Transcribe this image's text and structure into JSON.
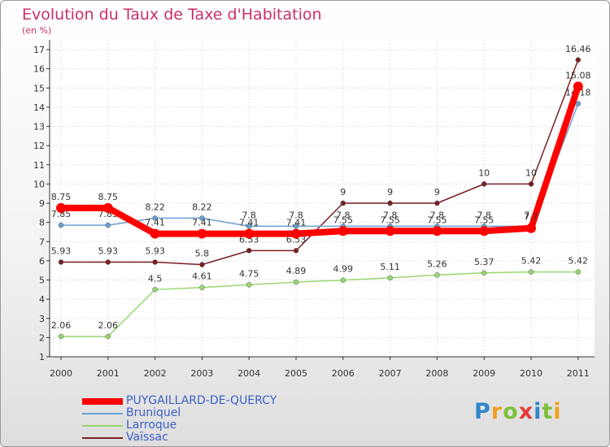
{
  "chart_data": {
    "type": "line",
    "title": "Evolution du Taux de Taxe d'Habitation",
    "subtitle": "(en %)",
    "x": [
      "2000",
      "2001",
      "2002",
      "2003",
      "2004",
      "2005",
      "2006",
      "2007",
      "2008",
      "2009",
      "2010",
      "2011"
    ],
    "ylim": [
      1,
      17
    ],
    "yticks": [
      "1",
      "2",
      "3",
      "4",
      "5",
      "6",
      "7",
      "8",
      "9",
      "10",
      "11",
      "12",
      "13",
      "14",
      "15",
      "16",
      "17"
    ],
    "grid": true,
    "legend_position": "bottom-left",
    "series": [
      {
        "name": "Vaïssac",
        "color": "#7a1f24",
        "values": [
          5.93,
          5.93,
          5.93,
          5.8,
          6.53,
          6.53,
          9,
          9,
          9,
          10,
          10,
          16.46
        ],
        "labels": [
          "5.93",
          "5.93",
          "5.93",
          "5.8",
          "6.53",
          "6.53",
          "9",
          "9",
          "9",
          "10",
          "10",
          "16.46"
        ]
      },
      {
        "name": "Larroque",
        "color": "#98d870",
        "values": [
          2.06,
          2.06,
          4.5,
          4.61,
          4.75,
          4.89,
          4.99,
          5.11,
          5.26,
          5.37,
          5.42,
          5.42
        ],
        "labels": [
          "2.06",
          "2.06",
          "4.5",
          "4.61",
          "4.75",
          "4.89",
          "4.99",
          "5.11",
          "5.26",
          "5.37",
          "5.42",
          "5.42"
        ]
      },
      {
        "name": "Bruniquel",
        "color": "#6aa0d0",
        "values": [
          7.85,
          7.85,
          8.22,
          8.22,
          7.8,
          7.8,
          7.8,
          7.8,
          7.8,
          7.8,
          7.8,
          14.18
        ],
        "labels": [
          "7.85",
          "7.85",
          "8.22",
          "8.22",
          "7.8",
          "7.8",
          "7.8",
          "7.8",
          "7.8",
          "7.8",
          "7.8",
          "14.18"
        ]
      },
      {
        "name": "PUYGAILLARD-DE-QUERCY",
        "color": "#ff0000",
        "values": [
          8.75,
          8.75,
          7.41,
          7.41,
          7.41,
          7.41,
          7.55,
          7.55,
          7.55,
          7.55,
          7.7,
          15.08
        ],
        "labels": [
          "8.75",
          "8.75",
          "7.41",
          "7.41",
          "7.41",
          "7.41",
          "7.55",
          "7.55",
          "7.55",
          "7.55",
          "7.7",
          "15.08"
        ]
      }
    ],
    "legend": [
      "PUYGAILLARD-DE-QUERCY",
      "Bruniquel",
      "Larroque",
      "Vaïssac"
    ]
  },
  "logo": {
    "p": "P",
    "r": "r",
    "o": "o",
    "x": "x",
    "i1": "i",
    "t": "t",
    "i2": "i"
  }
}
